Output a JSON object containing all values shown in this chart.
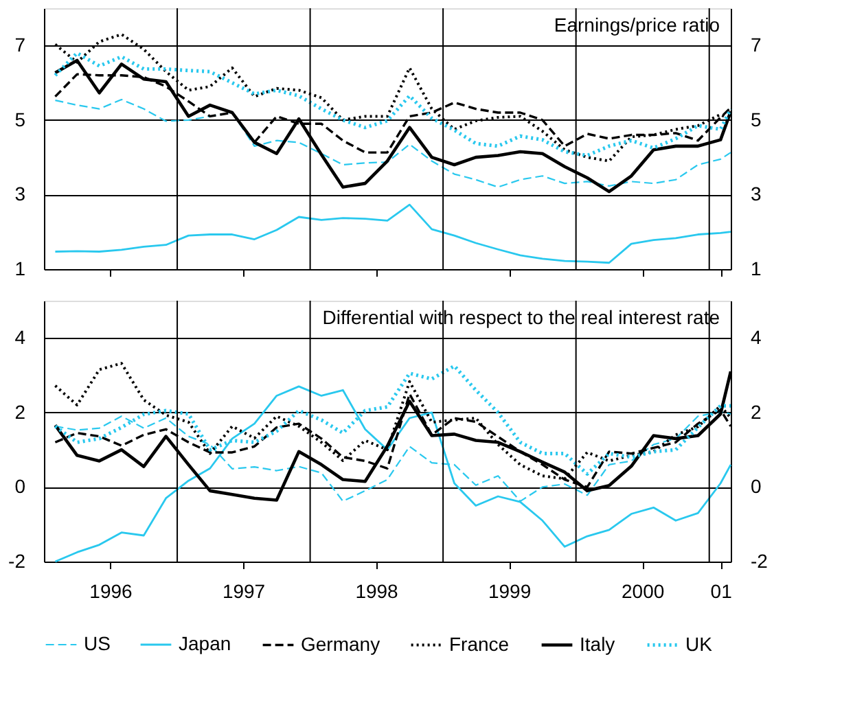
{
  "chart_data": [
    {
      "type": "line",
      "title": "Earnings/price ratio",
      "tick_labels": "y",
      "grid": "y",
      "legend": "bottom",
      "x": [
        "1996-02",
        "1996-04",
        "1996-06",
        "1996-08",
        "1996-10",
        "1996-12",
        "1997-02",
        "1997-04",
        "1997-06",
        "1997-08",
        "1997-10",
        "1997-12",
        "1998-02",
        "1998-04",
        "1998-06",
        "1998-08",
        "1998-10",
        "1998-12",
        "1999-02",
        "1999-04",
        "1999-06",
        "1999-08",
        "1999-10",
        "1999-12",
        "2000-02",
        "2000-04",
        "2000-06",
        "2000-08",
        "2000-10",
        "2000-12",
        "2001-02",
        "2001-03"
      ],
      "xlim": [
        "1996-01",
        "2001-03"
      ],
      "xticks": [
        {
          "value": "1996-07",
          "label": null
        },
        {
          "value": "1997-07",
          "label": null
        },
        {
          "value": "1998-07",
          "label": null
        },
        {
          "value": "1999-07",
          "label": null
        },
        {
          "value": "2000-07",
          "label": null
        },
        {
          "value": "2001-02",
          "label": null
        }
      ],
      "ylim": [
        1,
        8
      ],
      "yticks": [
        1,
        3,
        5,
        7
      ],
      "y2lim": [
        1,
        8
      ],
      "y2ticks": [
        1,
        3,
        5,
        7
      ],
      "ref_lines": [
        {
          "axis": "x",
          "value": "1997-01",
          "color": "#000000"
        },
        {
          "axis": "x",
          "value": "1998-01",
          "color": "#000000"
        },
        {
          "axis": "x",
          "value": "1999-01",
          "color": "#000000"
        },
        {
          "axis": "x",
          "value": "2000-01",
          "color": "#000000"
        },
        {
          "axis": "x",
          "value": "2001-01",
          "color": "#000000"
        }
      ],
      "series": [
        {
          "name": "US",
          "color": "#29c8ee",
          "line_style": "dashed",
          "values": [
            5.53,
            5.4,
            5.3,
            5.55,
            5.3,
            4.97,
            5.0,
            5.1,
            5.2,
            4.3,
            4.45,
            4.4,
            4.1,
            3.8,
            3.85,
            3.87,
            4.35,
            3.9,
            3.55,
            3.4,
            3.2,
            3.4,
            3.5,
            3.3,
            3.35,
            3.23,
            3.35,
            3.3,
            3.4,
            3.8,
            3.95,
            4.13
          ]
        },
        {
          "name": "Japan",
          "color": "#29c8ee",
          "line_style": "solid",
          "values": [
            1.47,
            1.48,
            1.47,
            1.52,
            1.6,
            1.65,
            1.9,
            1.93,
            1.93,
            1.8,
            2.05,
            2.4,
            2.32,
            2.37,
            2.35,
            2.3,
            2.73,
            2.07,
            1.9,
            1.7,
            1.53,
            1.37,
            1.28,
            1.22,
            1.2,
            1.17,
            1.68,
            1.78,
            1.83,
            1.93,
            1.97,
            2.0
          ]
        },
        {
          "name": "Germany",
          "color": "#000000",
          "line_style": "dashed",
          "values": [
            5.63,
            6.23,
            6.2,
            6.2,
            6.15,
            5.9,
            5.5,
            5.1,
            5.2,
            4.4,
            5.1,
            4.9,
            4.9,
            4.45,
            4.13,
            4.13,
            5.1,
            5.2,
            5.47,
            5.3,
            5.2,
            5.2,
            5.0,
            4.3,
            4.63,
            4.5,
            4.6,
            4.6,
            4.65,
            4.45,
            5.07,
            5.33
          ]
        },
        {
          "name": "France",
          "color": "#000000",
          "line_style": "dotted",
          "values": [
            7.03,
            6.55,
            7.1,
            7.3,
            6.9,
            6.3,
            5.8,
            5.9,
            6.4,
            5.63,
            5.85,
            5.8,
            5.6,
            5.0,
            5.1,
            5.1,
            6.4,
            5.3,
            4.75,
            4.98,
            5.07,
            5.1,
            4.7,
            4.2,
            4.0,
            3.9,
            4.55,
            4.6,
            4.75,
            4.85,
            5.15,
            5.0
          ]
        },
        {
          "name": "Italy",
          "color": "#000000",
          "line_style": "solid",
          "values": [
            6.27,
            6.6,
            5.73,
            6.5,
            6.1,
            6.03,
            5.1,
            5.4,
            5.2,
            4.4,
            4.1,
            5.03,
            4.07,
            3.2,
            3.3,
            3.9,
            4.8,
            4.0,
            3.8,
            4.0,
            4.05,
            4.15,
            4.1,
            3.75,
            3.45,
            3.08,
            3.5,
            4.2,
            4.3,
            4.3,
            4.47,
            5.23
          ]
        },
        {
          "name": "UK",
          "color": "#29c8ee",
          "line_style": "dotted",
          "values": [
            6.2,
            6.8,
            6.45,
            6.7,
            6.37,
            6.37,
            6.33,
            6.3,
            6.0,
            5.7,
            5.8,
            5.65,
            5.3,
            5.0,
            4.8,
            4.98,
            5.65,
            5.05,
            4.73,
            4.37,
            4.3,
            4.57,
            4.47,
            4.15,
            4.05,
            4.3,
            4.45,
            4.25,
            4.5,
            4.85,
            4.75,
            5.3
          ]
        }
      ]
    },
    {
      "type": "line",
      "title": "Differential with respect to the real interest rate",
      "grid": "y",
      "legend": "bottom",
      "x": [
        "1996-02",
        "1996-04",
        "1996-06",
        "1996-08",
        "1996-10",
        "1996-12",
        "1997-02",
        "1997-04",
        "1997-06",
        "1997-08",
        "1997-10",
        "1997-12",
        "1998-02",
        "1998-04",
        "1998-06",
        "1998-08",
        "1998-10",
        "1998-12",
        "1999-02",
        "1999-04",
        "1999-06",
        "1999-08",
        "1999-10",
        "1999-12",
        "2000-02",
        "2000-04",
        "2000-06",
        "2000-08",
        "2000-10",
        "2000-12",
        "2001-02",
        "2001-03"
      ],
      "xlim": [
        "1996-01",
        "2001-03"
      ],
      "xticks": [
        {
          "value": "1996-07",
          "label": "1996"
        },
        {
          "value": "1997-07",
          "label": "1997"
        },
        {
          "value": "1998-07",
          "label": "1998"
        },
        {
          "value": "1999-07",
          "label": "1999"
        },
        {
          "value": "2000-07",
          "label": "2000"
        },
        {
          "value": "2001-02",
          "label": "01"
        }
      ],
      "ylim": [
        -2,
        5
      ],
      "yticks": [
        -2,
        0,
        2,
        4
      ],
      "y2lim": [
        -2,
        5
      ],
      "y2ticks": [
        -2,
        0,
        2,
        4
      ],
      "ref_lines": [
        {
          "axis": "x",
          "value": "1997-01",
          "color": "#000000"
        },
        {
          "axis": "x",
          "value": "1998-01",
          "color": "#000000"
        },
        {
          "axis": "x",
          "value": "1999-01",
          "color": "#000000"
        },
        {
          "axis": "x",
          "value": "2000-01",
          "color": "#000000"
        },
        {
          "axis": "x",
          "value": "2001-01",
          "color": "#000000"
        }
      ],
      "series": [
        {
          "name": "US",
          "color": "#29c8ee",
          "line_style": "dashed",
          "values": [
            1.63,
            1.53,
            1.58,
            1.9,
            1.58,
            1.85,
            1.36,
            1.14,
            0.49,
            0.54,
            0.44,
            0.55,
            0.38,
            -0.38,
            -0.1,
            0.2,
            1.09,
            0.65,
            0.6,
            0.05,
            0.3,
            -0.38,
            0.0,
            0.08,
            -0.22,
            0.6,
            0.7,
            1.14,
            1.3,
            1.9,
            2.02,
            1.96
          ]
        },
        {
          "name": "Japan",
          "color": "#29c8ee",
          "line_style": "solid",
          "values": [
            -2.0,
            -1.75,
            -1.55,
            -1.22,
            -1.3,
            -0.3,
            0.17,
            0.5,
            1.3,
            1.7,
            2.45,
            2.7,
            2.45,
            2.6,
            1.55,
            1.0,
            1.85,
            2.0,
            0.1,
            -0.5,
            -0.25,
            -0.4,
            -0.9,
            -1.6,
            -1.32,
            -1.15,
            -0.72,
            -0.55,
            -0.9,
            -0.7,
            0.1,
            0.6
          ]
        },
        {
          "name": "Germany",
          "color": "#000000",
          "line_style": "dashed",
          "values": [
            1.2,
            1.45,
            1.36,
            1.11,
            1.4,
            1.55,
            1.2,
            0.93,
            0.93,
            1.09,
            1.6,
            1.7,
            1.3,
            0.8,
            0.7,
            0.5,
            2.5,
            1.4,
            1.85,
            1.75,
            1.35,
            0.95,
            0.6,
            0.2,
            0.0,
            0.95,
            0.9,
            1.05,
            1.2,
            1.7,
            2.07,
            1.63
          ]
        },
        {
          "name": "France",
          "color": "#000000",
          "line_style": "dotted",
          "values": [
            2.72,
            2.2,
            3.15,
            3.32,
            2.34,
            1.93,
            1.74,
            0.9,
            1.63,
            1.31,
            1.9,
            1.63,
            1.2,
            0.71,
            1.25,
            1.0,
            2.83,
            1.74,
            1.8,
            1.85,
            1.14,
            0.6,
            0.3,
            0.22,
            0.93,
            0.7,
            0.85,
            0.95,
            1.4,
            1.62,
            2.18,
            1.85
          ]
        },
        {
          "name": "Italy",
          "color": "#000000",
          "line_style": "solid",
          "values": [
            1.66,
            0.85,
            0.7,
            1.0,
            0.55,
            1.36,
            0.6,
            -0.1,
            -0.2,
            -0.3,
            -0.35,
            0.95,
            0.6,
            0.2,
            0.15,
            1.1,
            2.3,
            1.38,
            1.42,
            1.25,
            1.2,
            0.95,
            0.67,
            0.4,
            -0.1,
            0.04,
            0.56,
            1.38,
            1.3,
            1.38,
            1.96,
            3.1
          ]
        },
        {
          "name": "UK",
          "color": "#29c8ee",
          "line_style": "dotted",
          "values": [
            1.63,
            1.2,
            1.3,
            1.6,
            1.95,
            2.05,
            1.96,
            1.0,
            1.25,
            1.2,
            1.5,
            2.05,
            1.8,
            1.45,
            2.05,
            2.15,
            3.05,
            2.9,
            3.25,
            2.6,
            2.0,
            1.2,
            0.9,
            0.9,
            0.35,
            0.9,
            0.8,
            0.95,
            1.0,
            1.6,
            2.18,
            2.18
          ]
        }
      ]
    }
  ]
}
